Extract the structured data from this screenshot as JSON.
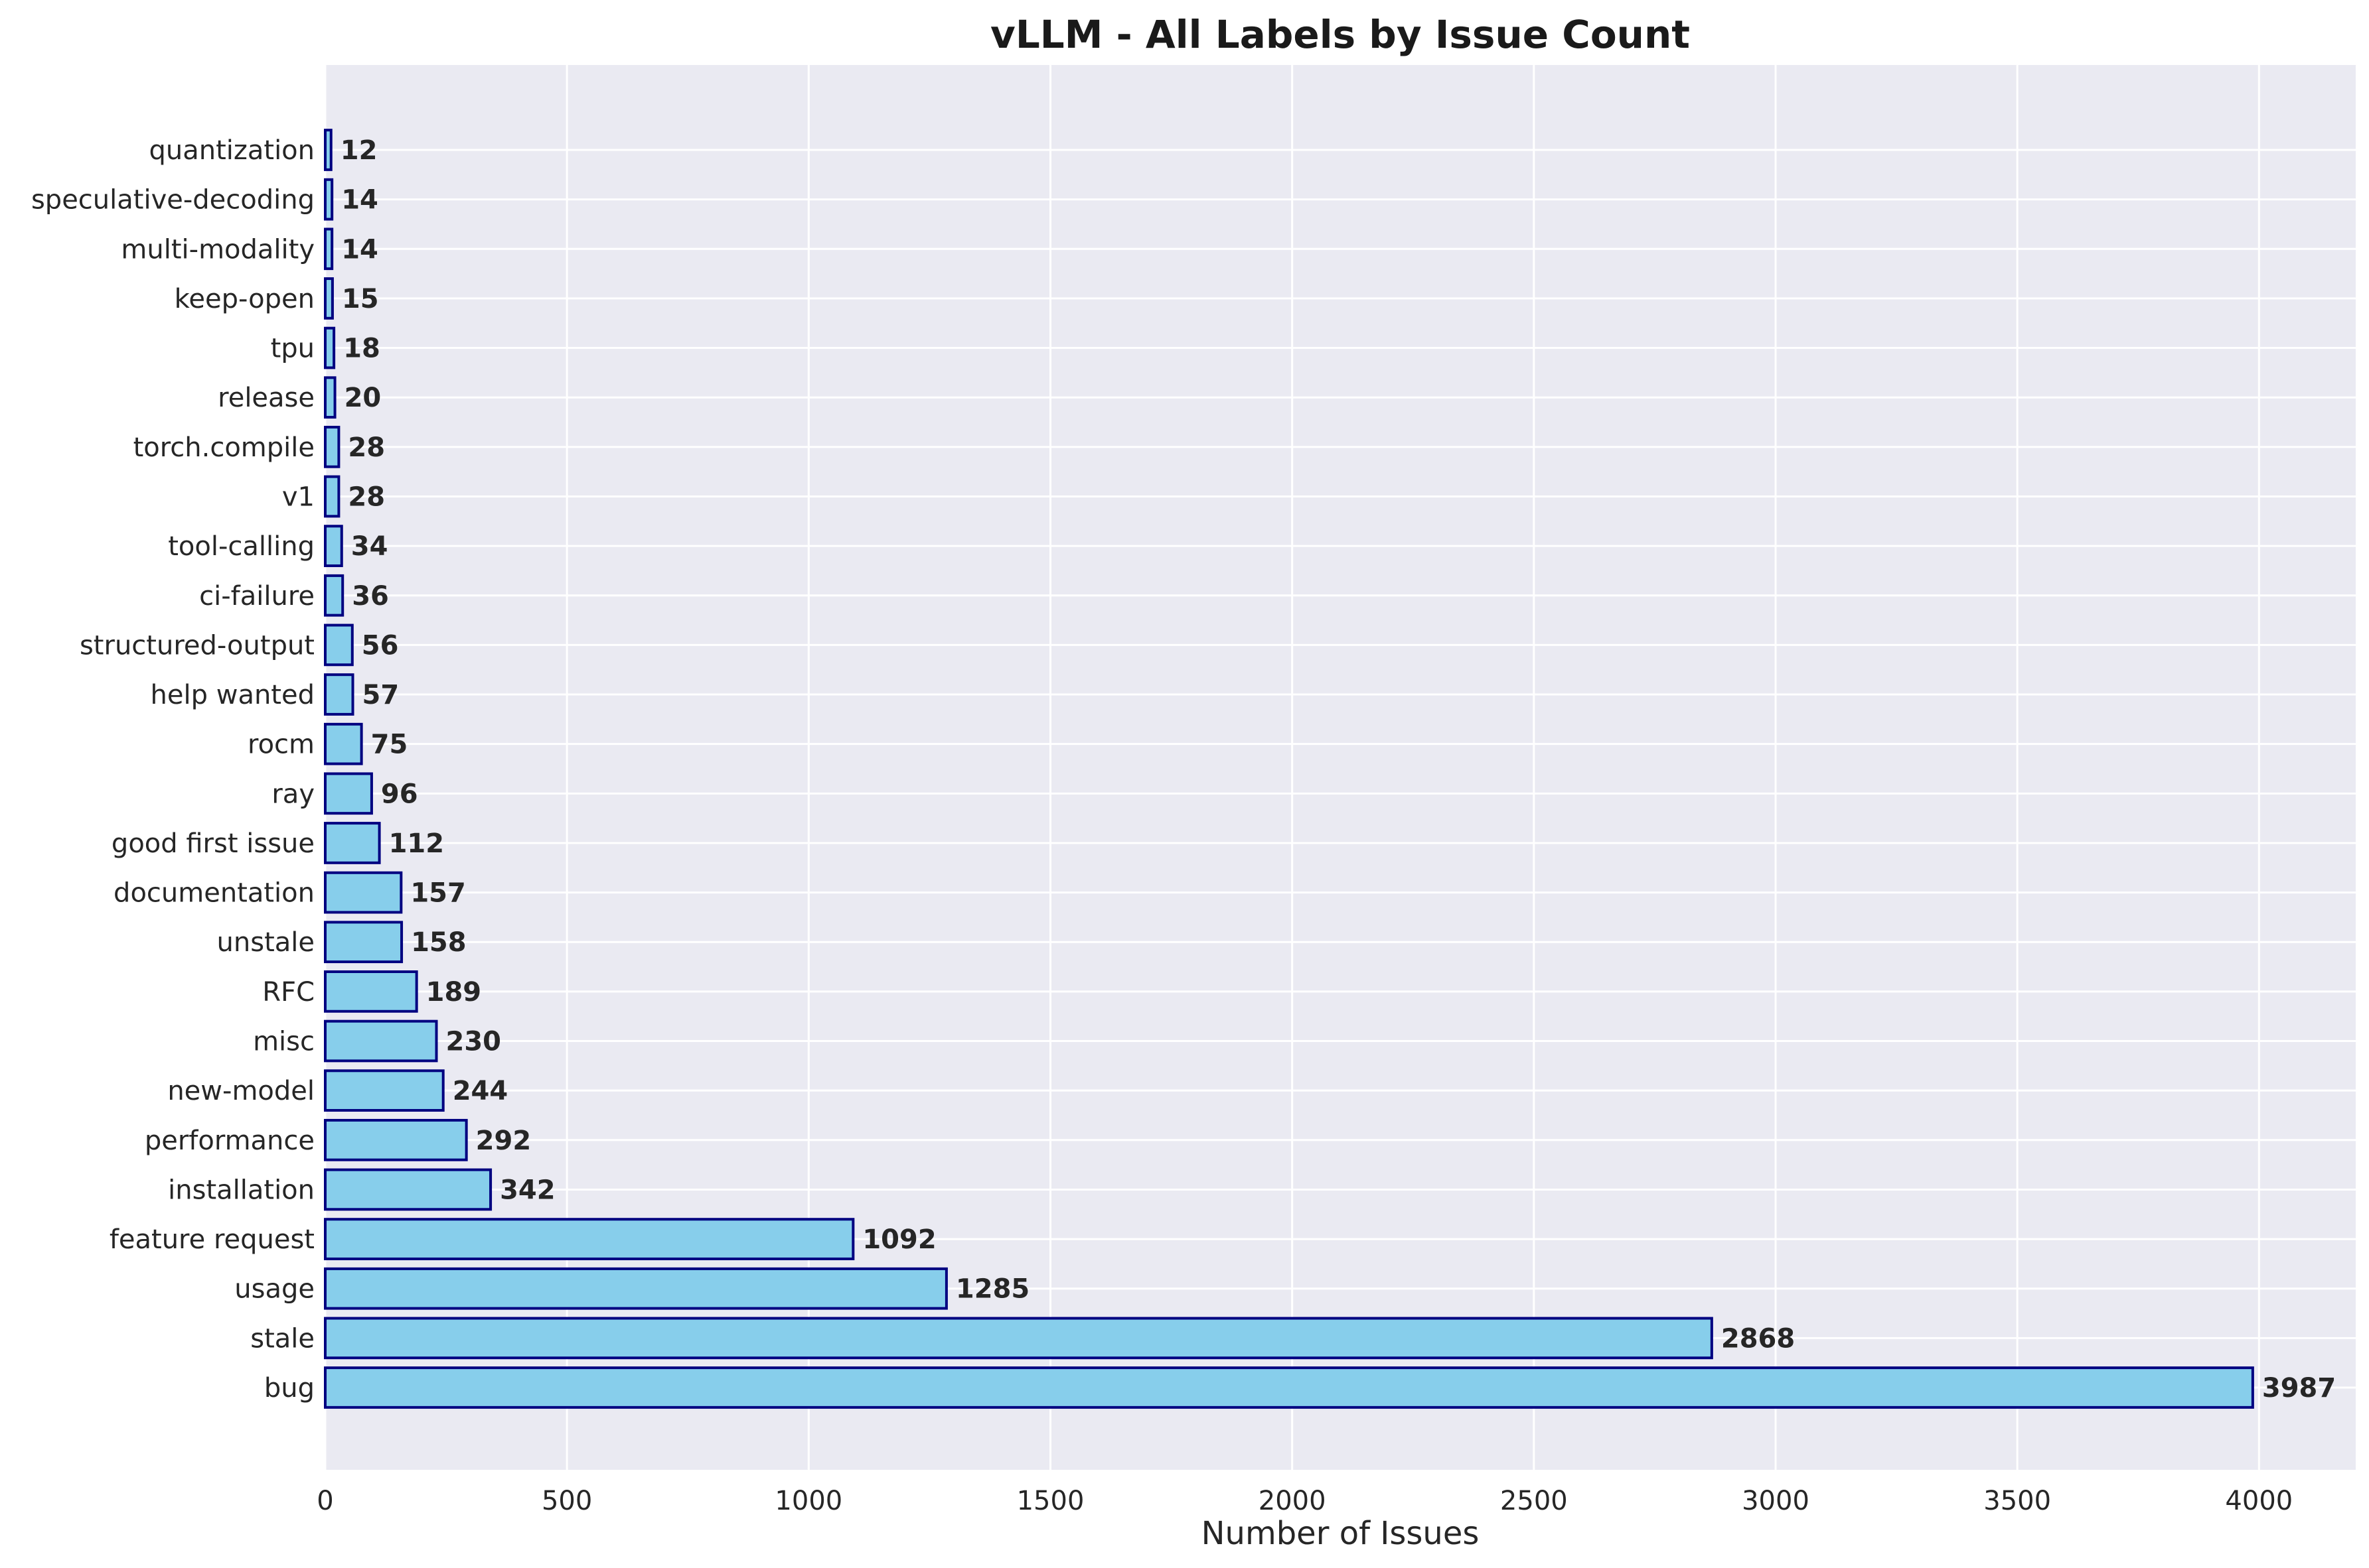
{
  "chart_data": {
    "type": "bar",
    "orientation": "horizontal",
    "title": "vLLM - All Labels by Issue Count",
    "xlabel": "Number of Issues",
    "ylabel": "",
    "xlim": [
      0,
      4200
    ],
    "xticks": [
      0,
      500,
      1000,
      1500,
      2000,
      2500,
      3000,
      3500,
      4000
    ],
    "xtick_labels": [
      "0",
      "500",
      "1000",
      "1500",
      "2000",
      "2500",
      "3000",
      "3500",
      "4000"
    ],
    "grid": true,
    "bar_color": "#87CEEB",
    "bar_edge_color": "#000080",
    "background_color": "#EAEAF2",
    "categories": [
      "bug",
      "stale",
      "usage",
      "feature request",
      "installation",
      "performance",
      "new-model",
      "misc",
      "RFC",
      "unstale",
      "documentation",
      "good first issue",
      "ray",
      "rocm",
      "help wanted",
      "structured-output",
      "ci-failure",
      "tool-calling",
      "v1",
      "torch.compile",
      "release",
      "tpu",
      "keep-open",
      "multi-modality",
      "speculative-decoding",
      "quantization"
    ],
    "values": [
      3987,
      2868,
      1285,
      1092,
      342,
      292,
      244,
      230,
      189,
      158,
      157,
      112,
      96,
      75,
      57,
      56,
      36,
      34,
      28,
      28,
      20,
      18,
      15,
      14,
      14,
      12
    ]
  }
}
